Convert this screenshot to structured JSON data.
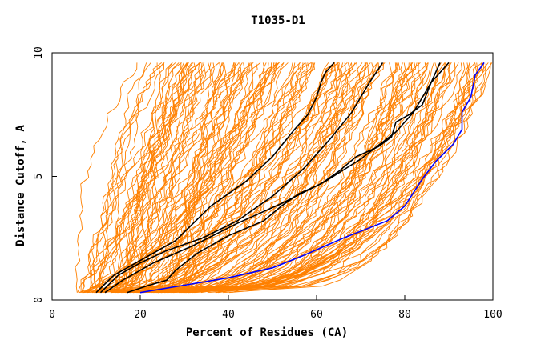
{
  "chart_data": {
    "type": "line",
    "title": "T1035-D1",
    "xlabel": "Percent of Residues (CA)",
    "ylabel": "Distance Cutoff, A",
    "xlim": [
      0,
      100
    ],
    "ylim": [
      0,
      10
    ],
    "xticks": [
      0,
      20,
      40,
      60,
      80,
      100
    ],
    "yticks": [
      0,
      5,
      10
    ],
    "grid": false,
    "colors": {
      "background_models": "#ff8000",
      "highlight_black": "#000000",
      "highlight_blue": "#0000ff"
    },
    "series": [
      {
        "name": "black-1",
        "color": "#000000",
        "x": [
          10,
          14,
          20,
          28,
          36,
          44,
          50,
          55,
          58,
          60,
          61,
          62,
          64
        ],
        "y": [
          0.3,
          1.0,
          1.6,
          2.4,
          3.8,
          4.8,
          5.8,
          6.9,
          7.5,
          8.2,
          8.8,
          9.2,
          9.6
        ]
      },
      {
        "name": "black-2",
        "color": "#000000",
        "x": [
          11,
          15,
          20,
          26,
          34,
          42,
          50,
          57,
          63,
          68,
          72,
          75
        ],
        "y": [
          0.3,
          1.0,
          1.5,
          2.0,
          2.5,
          3.2,
          4.2,
          5.3,
          6.5,
          7.6,
          8.8,
          9.6
        ]
      },
      {
        "name": "black-3",
        "color": "#000000",
        "x": [
          12,
          16,
          23,
          32,
          42,
          52,
          62,
          70,
          78,
          82,
          86,
          88
        ],
        "y": [
          0.3,
          0.8,
          1.5,
          2.2,
          3.1,
          3.9,
          4.8,
          5.7,
          6.8,
          7.6,
          8.8,
          9.6
        ]
      },
      {
        "name": "black-4",
        "color": "#000000",
        "x": [
          17,
          22,
          26,
          28,
          33,
          40,
          48,
          52,
          56,
          61,
          65,
          69,
          74,
          77,
          78,
          81,
          84,
          86,
          90
        ],
        "y": [
          0.3,
          0.6,
          0.8,
          1.2,
          1.9,
          2.6,
          3.2,
          3.8,
          4.3,
          4.7,
          5.2,
          5.8,
          6.2,
          6.6,
          7.2,
          7.5,
          7.9,
          8.8,
          9.6
        ]
      },
      {
        "name": "blue",
        "color": "#0000ff",
        "x": [
          20,
          30,
          40,
          50,
          57,
          66,
          76,
          80,
          84,
          87,
          91,
          93,
          93,
          95,
          96,
          98
        ],
        "y": [
          0.3,
          0.6,
          0.9,
          1.3,
          1.8,
          2.5,
          3.2,
          3.8,
          4.9,
          5.6,
          6.3,
          6.9,
          7.6,
          8.2,
          9.1,
          9.6
        ]
      }
    ]
  }
}
